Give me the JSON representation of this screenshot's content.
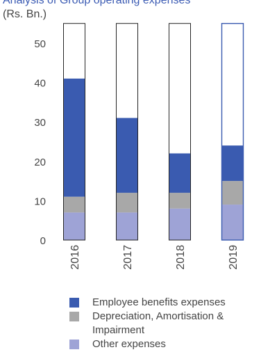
{
  "chart_data": {
    "type": "bar",
    "stacked": true,
    "title": "Analysis of Group operating expenses",
    "unit_label": "(Rs. Bn.)",
    "categories": [
      "2016",
      "2017",
      "2018",
      "2019"
    ],
    "series": [
      {
        "name": "Other expenses",
        "values": [
          7,
          7,
          8,
          9
        ],
        "color": "#9ea3d6"
      },
      {
        "name": "Depreciation, Amortisation & Impairment",
        "values": [
          4,
          5,
          4,
          6
        ],
        "color": "#a8a8a8"
      },
      {
        "name": "Employee benefits expenses",
        "values": [
          30,
          19,
          10,
          9
        ],
        "color": "#3a5bb0"
      }
    ],
    "capacity": 55,
    "y_ticks": [
      "0",
      "10",
      "20",
      "30",
      "40",
      "50"
    ],
    "ylim": [
      0,
      55
    ],
    "grid": false,
    "highlight_category": "2019",
    "highlight_color": "#3a5bb0",
    "legend_position": "bottom",
    "legend": [
      {
        "label": "Employee benefits expenses",
        "color": "#3a5bb0"
      },
      {
        "label": "Depreciation, Amortisation & Impairment",
        "color": "#a8a8a8"
      },
      {
        "label": "Other expenses",
        "color": "#9ea3d6"
      }
    ]
  }
}
